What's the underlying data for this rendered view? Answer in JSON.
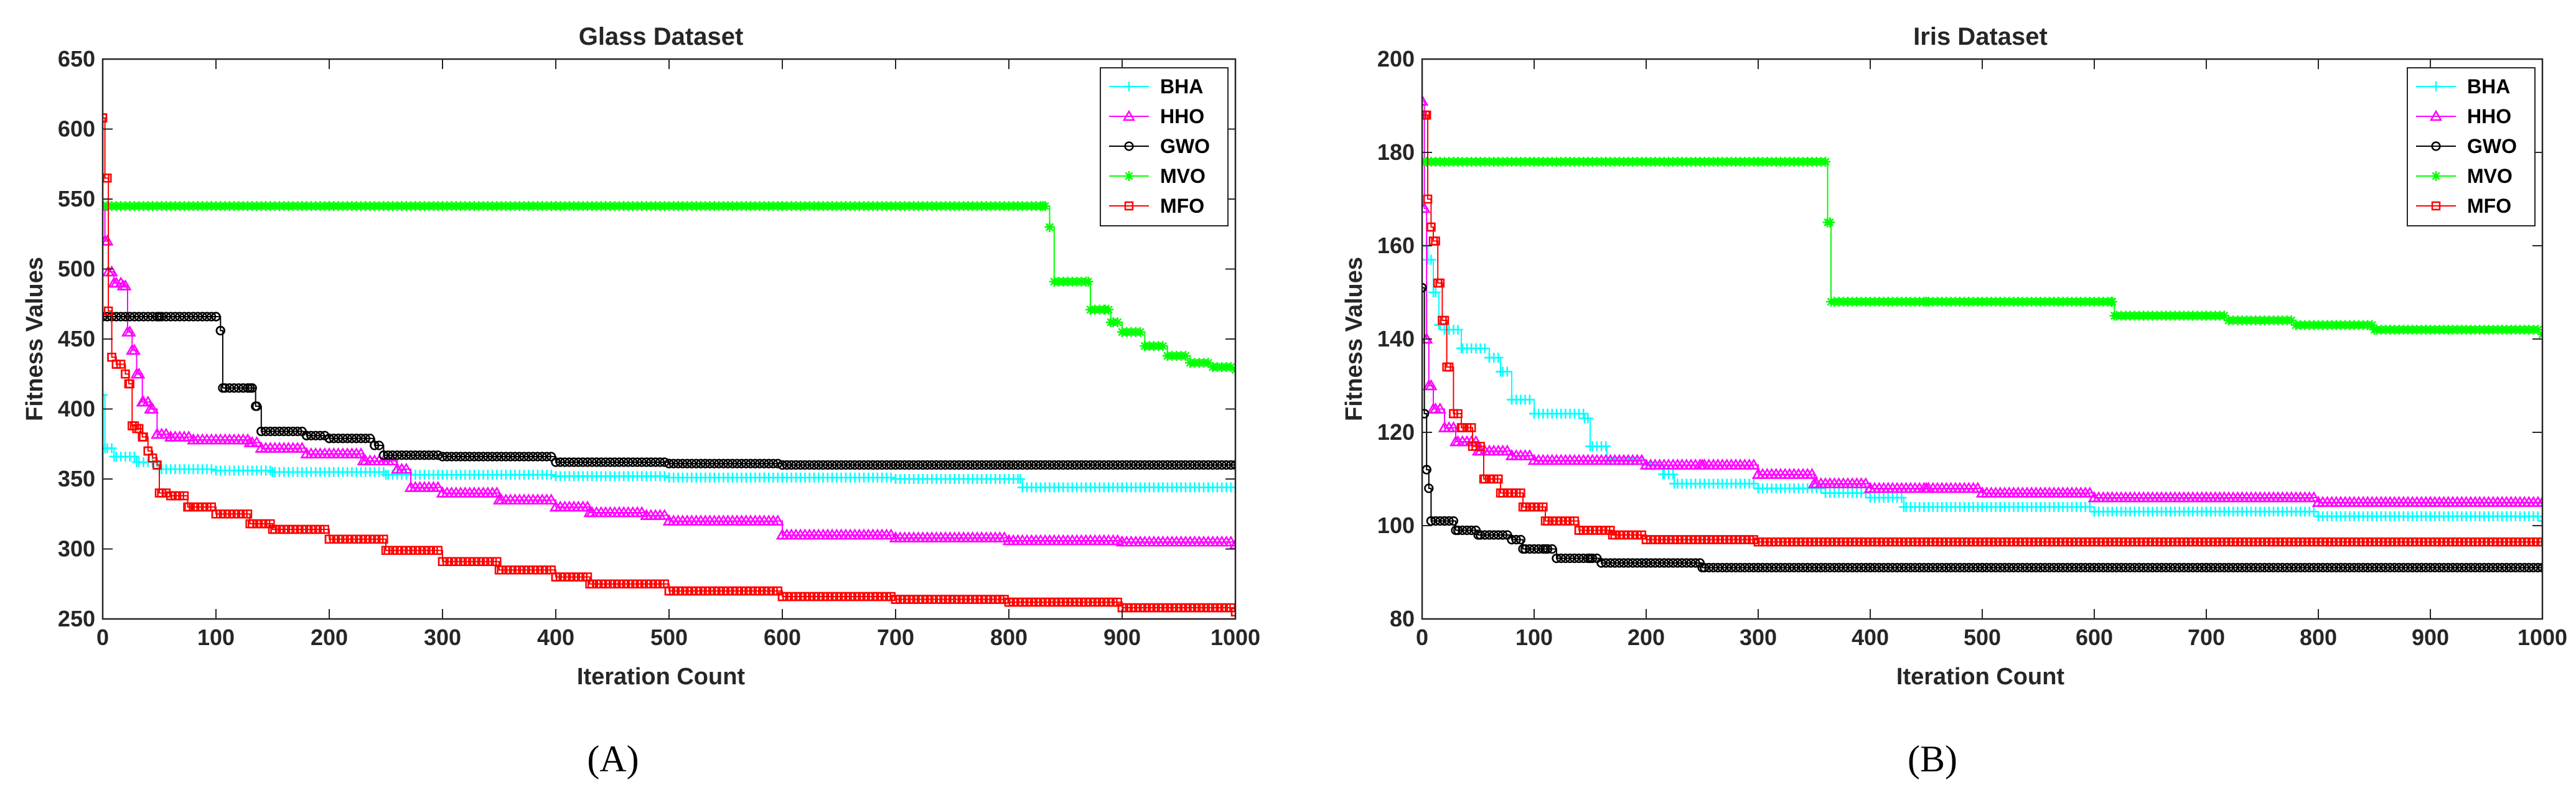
{
  "chart_data": [
    {
      "id": "A",
      "type": "line",
      "panel_label": "(A)",
      "title": "Glass Dataset",
      "xlabel": "Iteration Count",
      "ylabel": "Fitness Values",
      "xlim": [
        0,
        1000
      ],
      "ylim": [
        250,
        650
      ],
      "xticks": [
        0,
        100,
        200,
        300,
        400,
        500,
        600,
        700,
        800,
        900,
        1000
      ],
      "xtick_labels": [
        "0",
        "100",
        "200",
        "300",
        "400",
        "500",
        "600",
        "700",
        "800",
        "900",
        "1000"
      ],
      "yticks": [
        250,
        300,
        350,
        400,
        450,
        500,
        550,
        600,
        650
      ],
      "legend_position": "top-right",
      "series": [
        {
          "name": "BHA",
          "color": "#00ffff",
          "marker": "plus",
          "points": [
            [
              0,
              410
            ],
            [
              2,
              372
            ],
            [
              10,
              366
            ],
            [
              30,
              362
            ],
            [
              50,
              357
            ],
            [
              100,
              356
            ],
            [
              150,
              355
            ],
            [
              200,
              355
            ],
            [
              250,
              353
            ],
            [
              300,
              353
            ],
            [
              400,
              352
            ],
            [
              500,
              351
            ],
            [
              600,
              351
            ],
            [
              700,
              350
            ],
            [
              810,
              350
            ],
            [
              812,
              344
            ],
            [
              900,
              344
            ],
            [
              1000,
              344
            ]
          ]
        },
        {
          "name": "HHO",
          "color": "#ff00ff",
          "marker": "triangle",
          "points": [
            [
              0,
              545
            ],
            [
              2,
              520
            ],
            [
              5,
              498
            ],
            [
              10,
              490
            ],
            [
              18,
              488
            ],
            [
              22,
              455
            ],
            [
              26,
              442
            ],
            [
              30,
              425
            ],
            [
              35,
              405
            ],
            [
              42,
              400
            ],
            [
              48,
              382
            ],
            [
              60,
              380
            ],
            [
              80,
              378
            ],
            [
              130,
              376
            ],
            [
              140,
              372
            ],
            [
              180,
              368
            ],
            [
              230,
              363
            ],
            [
              260,
              357
            ],
            [
              272,
              344
            ],
            [
              300,
              340
            ],
            [
              350,
              335
            ],
            [
              400,
              330
            ],
            [
              430,
              326
            ],
            [
              480,
              324
            ],
            [
              500,
              320
            ],
            [
              600,
              310
            ],
            [
              700,
              308
            ],
            [
              800,
              306
            ],
            [
              900,
              305
            ],
            [
              1000,
              303
            ]
          ]
        },
        {
          "name": "GWO",
          "color": "#000000",
          "marker": "circle",
          "points": [
            [
              0,
              466
            ],
            [
              50,
              466
            ],
            [
              100,
              466
            ],
            [
              104,
              456
            ],
            [
              106,
              415
            ],
            [
              130,
              415
            ],
            [
              135,
              402
            ],
            [
              140,
              384
            ],
            [
              180,
              381
            ],
            [
              200,
              379
            ],
            [
              240,
              374
            ],
            [
              248,
              367
            ],
            [
              300,
              366
            ],
            [
              400,
              362
            ],
            [
              500,
              361
            ],
            [
              600,
              360
            ],
            [
              700,
              360
            ],
            [
              800,
              360
            ],
            [
              1000,
              360
            ]
          ]
        },
        {
          "name": "MVO",
          "color": "#00ff00",
          "marker": "asterisk",
          "points": [
            [
              0,
              545
            ],
            [
              200,
              545
            ],
            [
              400,
              545
            ],
            [
              600,
              545
            ],
            [
              830,
              545
            ],
            [
              836,
              530
            ],
            [
              840,
              491
            ],
            [
              870,
              491
            ],
            [
              872,
              471
            ],
            [
              885,
              471
            ],
            [
              890,
              462
            ],
            [
              900,
              455
            ],
            [
              920,
              445
            ],
            [
              940,
              438
            ],
            [
              960,
              433
            ],
            [
              980,
              430
            ],
            [
              1000,
              428
            ]
          ]
        },
        {
          "name": "MFO",
          "color": "#ff0000",
          "marker": "square",
          "points": [
            [
              0,
              608
            ],
            [
              2,
              565
            ],
            [
              5,
              470
            ],
            [
              8,
              437
            ],
            [
              12,
              432
            ],
            [
              20,
              425
            ],
            [
              23,
              418
            ],
            [
              26,
              388
            ],
            [
              30,
              386
            ],
            [
              35,
              380
            ],
            [
              40,
              370
            ],
            [
              44,
              365
            ],
            [
              48,
              360
            ],
            [
              50,
              340
            ],
            [
              60,
              338
            ],
            [
              75,
              330
            ],
            [
              100,
              325
            ],
            [
              130,
              318
            ],
            [
              150,
              314
            ],
            [
              200,
              307
            ],
            [
              250,
              299
            ],
            [
              300,
              291
            ],
            [
              350,
              285
            ],
            [
              400,
              280
            ],
            [
              430,
              275
            ],
            [
              500,
              270
            ],
            [
              600,
              266
            ],
            [
              700,
              264
            ],
            [
              800,
              262
            ],
            [
              900,
              258
            ],
            [
              1000,
              255
            ]
          ]
        }
      ]
    },
    {
      "id": "B",
      "type": "line",
      "panel_label": "(B)",
      "title": "Iris Dataset",
      "xlabel": "Iteration Count",
      "ylabel": "Fitness Values",
      "xlim": [
        0,
        1000
      ],
      "ylim": [
        80,
        200
      ],
      "xticks": [
        0,
        100,
        200,
        300,
        400,
        500,
        600,
        700,
        800,
        900,
        1000
      ],
      "xtick_labels": [
        "0",
        "100",
        "200",
        "300",
        "400",
        "500",
        "600",
        "700",
        "800",
        "900",
        "1000"
      ],
      "yticks": [
        80,
        100,
        120,
        140,
        160,
        180,
        200
      ],
      "legend_position": "top-right",
      "series": [
        {
          "name": "BHA",
          "color": "#00ffff",
          "marker": "plus",
          "points": [
            [
              0,
              160
            ],
            [
              5,
              157
            ],
            [
              10,
              150
            ],
            [
              15,
              143
            ],
            [
              20,
              142
            ],
            [
              35,
              138
            ],
            [
              60,
              136
            ],
            [
              70,
              133
            ],
            [
              80,
              127
            ],
            [
              100,
              124
            ],
            [
              145,
              123
            ],
            [
              150,
              117
            ],
            [
              165,
              114
            ],
            [
              200,
              113
            ],
            [
              215,
              111
            ],
            [
              225,
              109
            ],
            [
              300,
              108
            ],
            [
              360,
              107
            ],
            [
              400,
              106
            ],
            [
              430,
              104
            ],
            [
              500,
              104
            ],
            [
              600,
              103
            ],
            [
              700,
              103
            ],
            [
              800,
              102
            ],
            [
              900,
              102
            ],
            [
              1000,
              101
            ]
          ]
        },
        {
          "name": "HHO",
          "color": "#ff00ff",
          "marker": "triangle",
          "points": [
            [
              0,
              191
            ],
            [
              2,
              168
            ],
            [
              4,
              140
            ],
            [
              6,
              130
            ],
            [
              10,
              125
            ],
            [
              20,
              121
            ],
            [
              30,
              118
            ],
            [
              50,
              116
            ],
            [
              80,
              115
            ],
            [
              100,
              114
            ],
            [
              200,
              113
            ],
            [
              250,
              113
            ],
            [
              300,
              111
            ],
            [
              350,
              109
            ],
            [
              400,
              108
            ],
            [
              450,
              108
            ],
            [
              500,
              107
            ],
            [
              600,
              106
            ],
            [
              700,
              106
            ],
            [
              800,
              105
            ],
            [
              900,
              105
            ],
            [
              1000,
              105
            ]
          ]
        },
        {
          "name": "GWO",
          "color": "#000000",
          "marker": "circle",
          "points": [
            [
              0,
              151
            ],
            [
              2,
              124
            ],
            [
              4,
              112
            ],
            [
              6,
              108
            ],
            [
              8,
              101
            ],
            [
              20,
              101
            ],
            [
              30,
              99
            ],
            [
              50,
              98
            ],
            [
              80,
              97
            ],
            [
              90,
              95
            ],
            [
              110,
              95
            ],
            [
              120,
              93
            ],
            [
              150,
              93
            ],
            [
              160,
              92
            ],
            [
              200,
              92
            ],
            [
              250,
              91
            ],
            [
              300,
              91
            ],
            [
              400,
              91
            ],
            [
              500,
              91
            ],
            [
              700,
              91
            ],
            [
              1000,
              91
            ]
          ]
        },
        {
          "name": "MVO",
          "color": "#00ff00",
          "marker": "asterisk",
          "points": [
            [
              0,
              178
            ],
            [
              100,
              178
            ],
            [
              200,
              178
            ],
            [
              300,
              178
            ],
            [
              360,
              178
            ],
            [
              362,
              165
            ],
            [
              365,
              148
            ],
            [
              450,
              148
            ],
            [
              500,
              148
            ],
            [
              615,
              148
            ],
            [
              618,
              145
            ],
            [
              700,
              145
            ],
            [
              720,
              144
            ],
            [
              780,
              143
            ],
            [
              850,
              142
            ],
            [
              1000,
              141
            ]
          ]
        },
        {
          "name": "MFO",
          "color": "#ff0000",
          "marker": "square",
          "points": [
            [
              0,
              188
            ],
            [
              3,
              188
            ],
            [
              5,
              170
            ],
            [
              8,
              164
            ],
            [
              10,
              161
            ],
            [
              14,
              152
            ],
            [
              18,
              144
            ],
            [
              22,
              134
            ],
            [
              28,
              124
            ],
            [
              35,
              121
            ],
            [
              45,
              117
            ],
            [
              55,
              110
            ],
            [
              70,
              107
            ],
            [
              90,
              104
            ],
            [
              110,
              101
            ],
            [
              140,
              99
            ],
            [
              170,
              98
            ],
            [
              200,
              97
            ],
            [
              300,
              96.5
            ],
            [
              400,
              96.5
            ],
            [
              500,
              96.5
            ],
            [
              700,
              96.5
            ],
            [
              1000,
              96.5
            ]
          ]
        }
      ]
    }
  ]
}
